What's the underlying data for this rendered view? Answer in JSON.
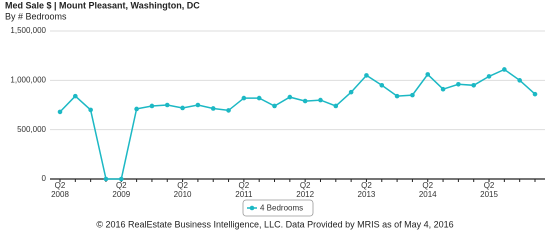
{
  "chart_data": {
    "type": "line",
    "title": "Med Sale $ | Mount Pleasant, Washington, DC",
    "subtitle": "By # Bedrooms",
    "footer": "© 2016 RealEstate Business Intelligence, LLC. Data Provided by MRIS as of May 4, 2016",
    "categories": [
      [
        "Q2",
        "2008"
      ],
      null,
      null,
      null,
      [
        "Q2",
        "2009"
      ],
      null,
      null,
      null,
      [
        "Q2",
        "2010"
      ],
      null,
      null,
      null,
      [
        "Q2",
        "2011"
      ],
      null,
      null,
      null,
      [
        "Q2",
        "2012"
      ],
      null,
      null,
      null,
      [
        "Q2",
        "2013"
      ],
      null,
      null,
      null,
      [
        "Q2",
        "2014"
      ],
      null,
      null,
      null,
      [
        "Q2",
        "2015"
      ],
      null,
      null,
      null
    ],
    "series": [
      {
        "name": "4 Bedrooms",
        "color": "#1cb8c4",
        "values": [
          680000,
          840000,
          700000,
          0,
          0,
          710000,
          740000,
          750000,
          720000,
          750000,
          715000,
          695000,
          820000,
          820000,
          740000,
          830000,
          790000,
          800000,
          740000,
          880000,
          1050000,
          950000,
          840000,
          850000,
          1060000,
          910000,
          960000,
          950000,
          1040000,
          1110000,
          1000000,
          860000
        ]
      }
    ],
    "ylim": [
      0,
      1500000
    ],
    "yticks": [
      0,
      {
        "value": 500000,
        "label": "500,000"
      },
      {
        "value": 1000000,
        "label": "1,000,000"
      },
      {
        "value": 1500000,
        "label": "1,500,000"
      }
    ],
    "grid": true
  }
}
